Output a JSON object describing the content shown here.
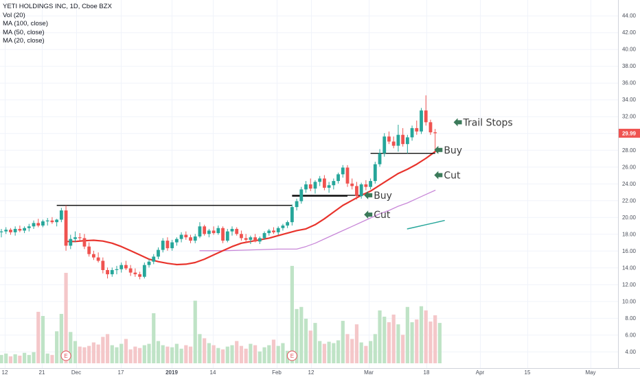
{
  "legend": {
    "symbol": "YETI HOLDINGS INC, 1D, Cboe BZX",
    "vol": "Vol (20)",
    "ma100": "MA (100, close)",
    "ma50": "MA (50, close)",
    "ma20": "MA (20, close)"
  },
  "colors": {
    "up": "#26a69a",
    "down": "#ef5350",
    "vol_up": "#bfe3c6",
    "vol_down": "#f4c7c9",
    "ma20": "#e8332c",
    "ma50": "#c887d8",
    "ma100": "#26a69a",
    "level": "#111111",
    "arrow": "#3b7a5a",
    "price_badge": "#ef5350"
  },
  "chart_data": {
    "type": "candlestick",
    "title": "YETI HOLDINGS INC, 1D, Cboe BZX",
    "x_tick_labels": [
      "12",
      "21",
      "Dec",
      "17",
      "2019",
      "14",
      "Feb",
      "12",
      "Mar",
      "18",
      "Apr",
      "15",
      "May"
    ],
    "y_ticks": [
      4,
      6,
      8,
      10,
      12,
      14,
      16,
      18,
      20,
      22,
      24,
      26,
      28,
      30,
      32,
      34,
      36,
      38,
      40,
      42,
      44
    ],
    "y_tick_labels": [
      "4.00",
      "6.00",
      "8.00",
      "10.00",
      "12.00",
      "14.00",
      "16.00",
      "18.00",
      "20.00",
      "22.00",
      "24.00",
      "26.00",
      "28.00",
      "30.00",
      "32.00",
      "34.00",
      "36.00",
      "38.00",
      "40.00",
      "42.00",
      "44.00"
    ],
    "ylim": [
      2.6,
      45.2
    ],
    "last_price": 29.99,
    "last_price_label": "29.99",
    "candles": [
      [
        18.2,
        18.6,
        17.6,
        18.3
      ],
      [
        18.3,
        18.8,
        18.0,
        18.5
      ],
      [
        18.5,
        18.7,
        17.9,
        18.2
      ],
      [
        18.2,
        18.9,
        17.8,
        18.6
      ],
      [
        18.6,
        19.0,
        18.2,
        18.4
      ],
      [
        18.4,
        18.9,
        18.1,
        18.7
      ],
      [
        18.7,
        19.2,
        18.3,
        18.9
      ],
      [
        18.9,
        19.6,
        18.6,
        19.3
      ],
      [
        19.3,
        19.8,
        18.8,
        19.0
      ],
      [
        19.0,
        19.7,
        18.8,
        19.5
      ],
      [
        19.5,
        19.9,
        19.0,
        19.6
      ],
      [
        19.6,
        20.0,
        19.2,
        19.4
      ],
      [
        19.4,
        19.8,
        18.9,
        19.7
      ],
      [
        19.7,
        21.1,
        19.4,
        20.8
      ],
      [
        20.8,
        21.4,
        16.0,
        16.6
      ],
      [
        16.6,
        17.9,
        16.2,
        17.4
      ],
      [
        17.4,
        18.3,
        17.0,
        17.6
      ],
      [
        17.6,
        18.1,
        17.2,
        17.5
      ],
      [
        17.5,
        18.0,
        16.2,
        16.5
      ],
      [
        16.5,
        17.0,
        15.3,
        15.6
      ],
      [
        15.6,
        16.0,
        14.9,
        15.2
      ],
      [
        15.2,
        15.8,
        14.6,
        14.8
      ],
      [
        14.8,
        15.2,
        13.3,
        13.7
      ],
      [
        13.7,
        14.0,
        12.7,
        13.2
      ],
      [
        13.2,
        14.0,
        12.9,
        13.7
      ],
      [
        13.7,
        14.2,
        13.2,
        13.8
      ],
      [
        13.8,
        14.6,
        13.4,
        14.3
      ],
      [
        14.3,
        14.8,
        13.7,
        13.9
      ],
      [
        13.9,
        14.3,
        13.0,
        13.4
      ],
      [
        13.4,
        13.9,
        12.9,
        13.2
      ],
      [
        13.2,
        13.5,
        12.6,
        12.9
      ],
      [
        12.9,
        14.6,
        12.7,
        14.3
      ],
      [
        14.3,
        15.0,
        14.0,
        14.7
      ],
      [
        14.7,
        15.6,
        14.4,
        15.3
      ],
      [
        15.3,
        16.4,
        15.0,
        16.1
      ],
      [
        16.1,
        17.5,
        15.8,
        17.2
      ],
      [
        17.2,
        17.6,
        16.0,
        16.3
      ],
      [
        16.3,
        17.3,
        16.0,
        17.0
      ],
      [
        17.0,
        17.6,
        16.6,
        17.4
      ],
      [
        17.4,
        18.2,
        17.0,
        17.9
      ],
      [
        17.9,
        18.3,
        17.3,
        17.6
      ],
      [
        17.6,
        17.9,
        16.9,
        17.2
      ],
      [
        17.2,
        18.0,
        16.9,
        17.7
      ],
      [
        17.7,
        19.4,
        17.5,
        18.9
      ],
      [
        18.9,
        19.1,
        17.8,
        18.0
      ],
      [
        18.0,
        18.6,
        17.6,
        18.4
      ],
      [
        18.4,
        18.9,
        17.9,
        18.1
      ],
      [
        18.1,
        19.0,
        17.9,
        18.7
      ],
      [
        18.7,
        18.9,
        16.9,
        17.2
      ],
      [
        17.2,
        18.6,
        17.0,
        18.3
      ],
      [
        18.3,
        18.9,
        17.8,
        18.6
      ],
      [
        18.6,
        18.8,
        17.8,
        18.0
      ],
      [
        18.0,
        18.4,
        17.2,
        17.5
      ],
      [
        17.5,
        18.0,
        16.9,
        17.3
      ],
      [
        17.3,
        17.8,
        16.8,
        17.6
      ],
      [
        17.6,
        18.0,
        17.0,
        17.1
      ],
      [
        17.1,
        17.7,
        16.8,
        17.5
      ],
      [
        17.5,
        18.3,
        17.3,
        18.1
      ],
      [
        18.1,
        18.6,
        17.8,
        18.4
      ],
      [
        18.4,
        18.8,
        18.0,
        18.2
      ],
      [
        18.2,
        18.9,
        17.9,
        18.7
      ],
      [
        18.7,
        19.2,
        18.4,
        19.0
      ],
      [
        19.0,
        19.6,
        18.7,
        19.4
      ],
      [
        19.4,
        21.5,
        19.0,
        21.2
      ],
      [
        21.2,
        22.2,
        20.8,
        21.9
      ],
      [
        21.9,
        23.6,
        21.6,
        23.3
      ],
      [
        23.3,
        24.3,
        22.9,
        23.9
      ],
      [
        23.9,
        24.6,
        23.1,
        23.4
      ],
      [
        23.4,
        24.4,
        22.8,
        24.2
      ],
      [
        24.2,
        24.9,
        23.7,
        24.6
      ],
      [
        24.6,
        25.0,
        23.2,
        23.5
      ],
      [
        23.5,
        24.2,
        22.9,
        23.8
      ],
      [
        23.8,
        24.6,
        23.3,
        24.3
      ],
      [
        24.3,
        25.3,
        24.0,
        25.1
      ],
      [
        25.1,
        26.2,
        24.7,
        25.9
      ],
      [
        25.9,
        26.2,
        23.6,
        24.0
      ],
      [
        24.0,
        24.6,
        23.3,
        23.7
      ],
      [
        23.7,
        24.2,
        22.1,
        22.5
      ],
      [
        22.5,
        24.1,
        22.2,
        23.9
      ],
      [
        23.9,
        24.4,
        23.2,
        23.6
      ],
      [
        23.6,
        24.6,
        23.3,
        24.3
      ],
      [
        24.3,
        26.6,
        24.0,
        26.3
      ],
      [
        26.3,
        28.1,
        26.0,
        27.6
      ],
      [
        27.6,
        30.0,
        27.2,
        29.6
      ],
      [
        29.6,
        30.2,
        28.7,
        29.0
      ],
      [
        29.0,
        29.6,
        28.2,
        28.5
      ],
      [
        28.5,
        31.0,
        27.8,
        29.8
      ],
      [
        29.8,
        30.6,
        28.4,
        28.7
      ],
      [
        28.7,
        29.8,
        27.6,
        29.5
      ],
      [
        29.5,
        30.9,
        29.1,
        30.6
      ],
      [
        30.6,
        31.5,
        29.8,
        30.2
      ],
      [
        30.2,
        33.0,
        29.9,
        32.7
      ],
      [
        32.7,
        34.5,
        30.9,
        31.3
      ],
      [
        31.3,
        31.6,
        29.8,
        30.1
      ],
      [
        30.1,
        30.5,
        27.9,
        29.99
      ]
    ],
    "volumes_m": [
      1.2,
      1.4,
      1.0,
      1.3,
      1.1,
      1.5,
      1.2,
      1.6,
      7.4,
      6.8,
      1.4,
      1.2,
      4.6,
      7.1,
      13.0,
      4.5,
      3.2,
      2.4,
      2.3,
      2.5,
      3.0,
      2.7,
      3.8,
      4.2,
      2.6,
      2.3,
      2.8,
      3.5,
      2.0,
      2.4,
      2.2,
      2.6,
      2.8,
      7.2,
      3.2,
      2.6,
      2.4,
      2.3,
      2.8,
      2.1,
      2.6,
      2.4,
      9.0,
      4.2,
      3.6,
      2.9,
      2.6,
      2.2,
      2.0,
      2.4,
      2.6,
      3.2,
      2.5,
      2.1,
      2.8,
      2.6,
      1.7,
      2.3,
      2.6,
      3.4,
      2.5,
      2.9,
      1.8,
      14.0,
      7.8,
      8.1,
      6.4,
      4.7,
      5.8,
      3.2,
      2.8,
      3.1,
      2.9,
      3.3,
      6.1,
      4.2,
      3.5,
      5.6,
      3.0,
      2.5,
      3.2,
      4.2,
      7.6,
      6.7,
      5.9,
      7.0,
      5.6,
      4.1,
      8.1,
      5.9,
      6.3,
      8.2,
      7.6,
      6.0,
      6.9,
      5.8
    ],
    "ma20": [
      [
        14,
        17.1
      ],
      [
        16,
        17.1
      ],
      [
        18,
        17.2
      ],
      [
        20,
        17.25
      ],
      [
        22,
        17.15
      ],
      [
        24,
        16.9
      ],
      [
        26,
        16.5
      ],
      [
        28,
        16.0
      ],
      [
        30,
        15.5
      ],
      [
        32,
        15.0
      ],
      [
        34,
        14.7
      ],
      [
        36,
        14.5
      ],
      [
        38,
        14.35
      ],
      [
        40,
        14.4
      ],
      [
        42,
        14.6
      ],
      [
        44,
        15.0
      ],
      [
        46,
        15.5
      ],
      [
        48,
        16.0
      ],
      [
        50,
        16.5
      ],
      [
        52,
        16.9
      ],
      [
        54,
        17.1
      ],
      [
        56,
        17.3
      ],
      [
        58,
        17.5
      ],
      [
        60,
        17.8
      ],
      [
        62,
        18.1
      ],
      [
        64,
        18.4
      ],
      [
        66,
        18.6
      ],
      [
        68,
        19.1
      ],
      [
        70,
        19.8
      ],
      [
        72,
        20.6
      ],
      [
        74,
        21.4
      ],
      [
        76,
        22.0
      ],
      [
        78,
        22.6
      ],
      [
        80,
        23.1
      ],
      [
        82,
        23.8
      ],
      [
        84,
        24.5
      ],
      [
        86,
        25.2
      ],
      [
        88,
        25.7
      ],
      [
        90,
        26.3
      ],
      [
        92,
        27.0
      ],
      [
        94,
        27.8
      ]
    ],
    "ma50": [
      [
        43,
        16.0
      ],
      [
        48,
        16.0
      ],
      [
        54,
        16.1
      ],
      [
        60,
        16.2
      ],
      [
        64,
        16.2
      ],
      [
        66,
        16.5
      ],
      [
        68,
        16.9
      ],
      [
        70,
        17.4
      ],
      [
        72,
        17.9
      ],
      [
        74,
        18.4
      ],
      [
        76,
        18.9
      ],
      [
        78,
        19.4
      ],
      [
        80,
        19.9
      ],
      [
        82,
        20.4
      ],
      [
        84,
        20.8
      ],
      [
        86,
        21.3
      ],
      [
        88,
        21.7
      ],
      [
        90,
        22.2
      ],
      [
        92,
        22.7
      ],
      [
        94,
        23.2
      ]
    ],
    "ma100": [
      [
        88,
        18.6
      ],
      [
        90,
        18.85
      ],
      [
        92,
        19.1
      ],
      [
        94,
        19.35
      ],
      [
        96,
        19.6
      ]
    ],
    "levels": [
      [
        12,
        63,
        21.4
      ],
      [
        63,
        75,
        22.5
      ],
      [
        63,
        78,
        22.6
      ],
      [
        80,
        94,
        27.6
      ]
    ],
    "earnings_markers": [
      14,
      63
    ],
    "earnings_label": "E",
    "annotations": [
      {
        "text": "Trail Stops",
        "i": 98,
        "y": 31.3
      },
      {
        "text": "Buy",
        "i": 93.8,
        "y": 28.0
      },
      {
        "text": "Cut",
        "i": 93.8,
        "y": 25.0
      },
      {
        "text": "Buy",
        "i": 78.6,
        "y": 22.6
      },
      {
        "text": "Cut",
        "i": 78.6,
        "y": 20.3
      }
    ]
  }
}
